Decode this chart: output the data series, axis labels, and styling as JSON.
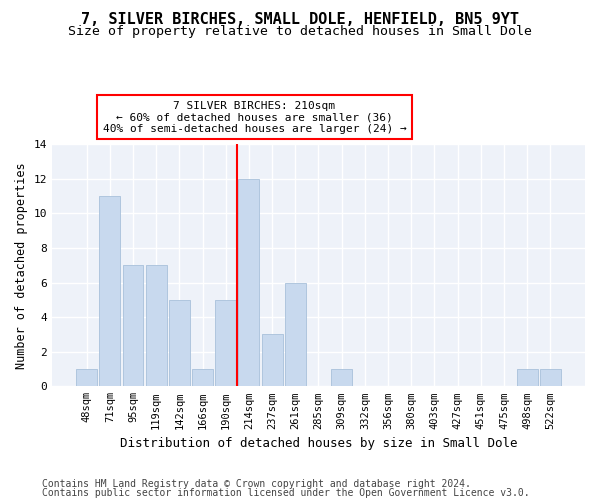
{
  "title": "7, SILVER BIRCHES, SMALL DOLE, HENFIELD, BN5 9YT",
  "subtitle": "Size of property relative to detached houses in Small Dole",
  "xlabel": "Distribution of detached houses by size in Small Dole",
  "ylabel": "Number of detached properties",
  "footer_line1": "Contains HM Land Registry data © Crown copyright and database right 2024.",
  "footer_line2": "Contains public sector information licensed under the Open Government Licence v3.0.",
  "categories": [
    "48sqm",
    "71sqm",
    "95sqm",
    "119sqm",
    "142sqm",
    "166sqm",
    "190sqm",
    "214sqm",
    "237sqm",
    "261sqm",
    "285sqm",
    "309sqm",
    "332sqm",
    "356sqm",
    "380sqm",
    "403sqm",
    "427sqm",
    "451sqm",
    "475sqm",
    "498sqm",
    "522sqm"
  ],
  "values": [
    1,
    11,
    7,
    7,
    5,
    1,
    5,
    12,
    3,
    6,
    0,
    1,
    0,
    0,
    0,
    0,
    0,
    0,
    0,
    1,
    1
  ],
  "bar_color": "#c8d9ee",
  "bar_edge_color": "#a8c0da",
  "annotation_text": "7 SILVER BIRCHES: 210sqm\n← 60% of detached houses are smaller (36)\n40% of semi-detached houses are larger (24) →",
  "annotation_box_color": "white",
  "annotation_box_edge_color": "red",
  "vline_color": "red",
  "vline_x_index": 7,
  "ylim": [
    0,
    14
  ],
  "yticks": [
    0,
    2,
    4,
    6,
    8,
    10,
    12,
    14
  ],
  "background_color": "#eef2f9",
  "grid_color": "white",
  "title_fontsize": 11,
  "subtitle_fontsize": 9.5,
  "xlabel_fontsize": 9,
  "ylabel_fontsize": 8.5,
  "tick_fontsize": 7.5,
  "footer_fontsize": 7
}
